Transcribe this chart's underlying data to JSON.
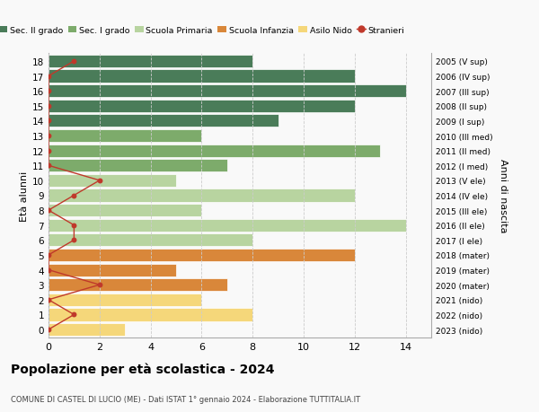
{
  "ages": [
    18,
    17,
    16,
    15,
    14,
    13,
    12,
    11,
    10,
    9,
    8,
    7,
    6,
    5,
    4,
    3,
    2,
    1,
    0
  ],
  "right_labels": [
    "2005 (V sup)",
    "2006 (IV sup)",
    "2007 (III sup)",
    "2008 (II sup)",
    "2009 (I sup)",
    "2010 (III med)",
    "2011 (II med)",
    "2012 (I med)",
    "2013 (V ele)",
    "2014 (IV ele)",
    "2015 (III ele)",
    "2016 (II ele)",
    "2017 (I ele)",
    "2018 (mater)",
    "2019 (mater)",
    "2020 (mater)",
    "2021 (nido)",
    "2022 (nido)",
    "2023 (nido)"
  ],
  "bar_values": [
    8,
    12,
    14,
    12,
    9,
    6,
    13,
    7,
    5,
    12,
    6,
    14,
    8,
    12,
    5,
    7,
    6,
    8,
    3
  ],
  "bar_colors": [
    "#4a7c59",
    "#4a7c59",
    "#4a7c59",
    "#4a7c59",
    "#4a7c59",
    "#7dab6b",
    "#7dab6b",
    "#7dab6b",
    "#b8d4a0",
    "#b8d4a0",
    "#b8d4a0",
    "#b8d4a0",
    "#b8d4a0",
    "#d9873a",
    "#d9873a",
    "#d9873a",
    "#f5d77a",
    "#f5d77a",
    "#f5d77a"
  ],
  "stranieri_x": [
    1,
    0,
    0,
    0,
    0,
    0,
    0,
    0,
    2,
    1,
    0,
    1,
    1,
    0,
    0,
    2,
    0,
    1,
    0
  ],
  "stranieri_y": [
    18,
    17,
    16,
    15,
    14,
    13,
    12,
    11,
    10,
    9,
    8,
    7,
    6,
    5,
    4,
    3,
    2,
    1,
    0
  ],
  "legend_labels": [
    "Sec. II grado",
    "Sec. I grado",
    "Scuola Primaria",
    "Scuola Infanzia",
    "Asilo Nido",
    "Stranieri"
  ],
  "legend_colors": [
    "#4a7c59",
    "#7dab6b",
    "#b8d4a0",
    "#d9873a",
    "#f5d77a",
    "#c0392b"
  ],
  "stranieri_color": "#c0392b",
  "title": "Popolazione per età scolastica - 2024",
  "subtitle": "COMUNE DI CASTEL DI LUCIO (ME) - Dati ISTAT 1° gennaio 2024 - Elaborazione TUTTITALIA.IT",
  "ylabel": "Età alunni",
  "right_ylabel": "Anni di nascita",
  "xlim": [
    0,
    15
  ],
  "xticks": [
    0,
    2,
    4,
    6,
    8,
    10,
    12,
    14
  ],
  "ylim": [
    -0.55,
    18.55
  ],
  "background_color": "#f9f9f9",
  "grid_color": "#cccccc"
}
